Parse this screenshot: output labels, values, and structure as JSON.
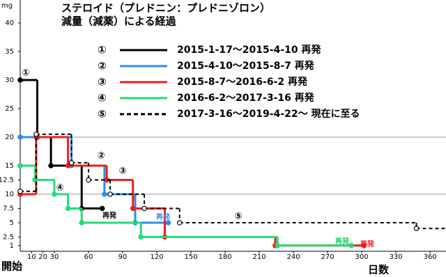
{
  "chart_data": {
    "type": "step",
    "title": [
      "ステロイド（プレドニン：プレドニゾロン）",
      "減量（減薬）による経過"
    ],
    "y_label": "mg",
    "x_label": "日数",
    "x_start_label": "開始",
    "xlim": [
      0,
      374
    ],
    "ylim": [
      0,
      40
    ],
    "xticks": [
      10,
      20,
      30,
      60,
      90,
      120,
      150,
      180,
      210,
      240,
      270,
      300,
      330,
      360
    ],
    "yticks": [
      1,
      2.5,
      5,
      7.5,
      10,
      12.5,
      15,
      20,
      25,
      30,
      35,
      40
    ],
    "gridlines": [
      10,
      20
    ],
    "series": [
      {
        "marker": "①",
        "name": "2015-1-17～2015-4-10 再発",
        "color": "#000000",
        "dash": false,
        "x": [
          0,
          15,
          27,
          54,
          72
        ],
        "values": [
          30,
          20,
          15,
          7.5,
          7.5
        ]
      },
      {
        "marker": "②",
        "name": "2015-4-10～2015-8-7 再発",
        "color": "#2a8ef0",
        "dash": false,
        "x": [
          0,
          45,
          74,
          101,
          130
        ],
        "values": [
          20,
          15,
          10,
          5,
          5
        ]
      },
      {
        "marker": "③",
        "name": "2015-8-7～2016-6-2 再発",
        "color": "#ee1c1c",
        "dash": false,
        "x": [
          0,
          14,
          42,
          76,
          99,
          127,
          224,
          302
        ],
        "values": [
          10,
          20,
          15,
          12.5,
          7.5,
          2.5,
          1,
          1
        ]
      },
      {
        "marker": "④",
        "name": "2016-6-2～2017-3-16 再発",
        "color": "#22dd77",
        "dash": false,
        "x": [
          0,
          13,
          30,
          42,
          54,
          106,
          226,
          291
        ],
        "values": [
          15,
          12.5,
          10,
          7.5,
          5,
          2.5,
          1,
          1
        ]
      },
      {
        "marker": "⑤",
        "name": "2017-3-16～2019-4-22～ 現在に至る",
        "color": "#000000",
        "dash": true,
        "x": [
          0,
          14,
          45,
          60,
          79,
          109,
          140,
          348,
          374
        ],
        "values": [
          10.5,
          20.5,
          15.5,
          12.5,
          10,
          7.5,
          5,
          4,
          4
        ]
      }
    ],
    "annotations": [
      {
        "text": "①",
        "color": "#000000"
      },
      {
        "text": "②",
        "color": "#000000"
      },
      {
        "text": "③",
        "color": "#000000"
      },
      {
        "text": "④",
        "color": "#000000"
      },
      {
        "text": "⑤",
        "color": "#000000"
      },
      {
        "text": "再発",
        "color": "#000000"
      },
      {
        "text": "再発",
        "color": "#2a8ef0"
      },
      {
        "text": "再発",
        "color": "#22cc66"
      },
      {
        "text": "再発",
        "color": "#ee1c1c"
      }
    ]
  }
}
